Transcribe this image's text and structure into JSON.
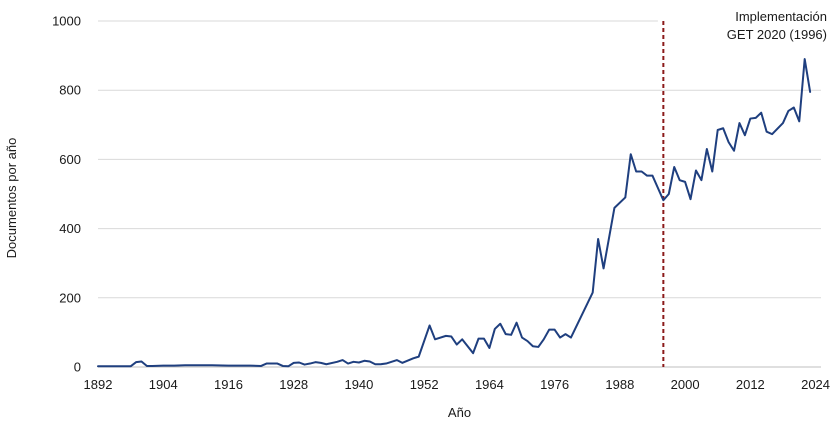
{
  "chart_data": {
    "type": "line",
    "xlabel": "Año",
    "ylabel": "Documentos por año",
    "xlim": [
      1892,
      2025
    ],
    "ylim": [
      0,
      1000
    ],
    "x_ticks": [
      1892,
      1904,
      1916,
      1928,
      1940,
      1952,
      1964,
      1976,
      1988,
      2000,
      2012,
      2024
    ],
    "y_ticks": [
      0,
      200,
      400,
      600,
      800,
      1000
    ],
    "grid": "horizontal",
    "line_color": "#1f3f7f",
    "series": [
      {
        "values": [
          [
            1892,
            2
          ],
          [
            1895,
            2
          ],
          [
            1898,
            2
          ],
          [
            1899,
            14
          ],
          [
            1900,
            16
          ],
          [
            1901,
            3
          ],
          [
            1902,
            3
          ],
          [
            1904,
            4
          ],
          [
            1906,
            4
          ],
          [
            1908,
            5
          ],
          [
            1910,
            5
          ],
          [
            1913,
            5
          ],
          [
            1916,
            4
          ],
          [
            1920,
            4
          ],
          [
            1922,
            3
          ],
          [
            1923,
            10
          ],
          [
            1925,
            10
          ],
          [
            1926,
            3
          ],
          [
            1927,
            2
          ],
          [
            1928,
            12
          ],
          [
            1929,
            13
          ],
          [
            1930,
            7
          ],
          [
            1931,
            10
          ],
          [
            1932,
            14
          ],
          [
            1933,
            12
          ],
          [
            1934,
            8
          ],
          [
            1936,
            15
          ],
          [
            1937,
            20
          ],
          [
            1938,
            10
          ],
          [
            1939,
            15
          ],
          [
            1940,
            13
          ],
          [
            1941,
            18
          ],
          [
            1942,
            16
          ],
          [
            1943,
            8
          ],
          [
            1944,
            8
          ],
          [
            1945,
            10
          ],
          [
            1946,
            15
          ],
          [
            1947,
            20
          ],
          [
            1948,
            12
          ],
          [
            1950,
            25
          ],
          [
            1951,
            30
          ],
          [
            1953,
            120
          ],
          [
            1954,
            80
          ],
          [
            1956,
            90
          ],
          [
            1957,
            88
          ],
          [
            1958,
            65
          ],
          [
            1959,
            80
          ],
          [
            1961,
            40
          ],
          [
            1962,
            82
          ],
          [
            1963,
            82
          ],
          [
            1964,
            55
          ],
          [
            1965,
            110
          ],
          [
            1966,
            125
          ],
          [
            1967,
            95
          ],
          [
            1968,
            93
          ],
          [
            1969,
            128
          ],
          [
            1970,
            85
          ],
          [
            1971,
            75
          ],
          [
            1972,
            60
          ],
          [
            1973,
            58
          ],
          [
            1974,
            80
          ],
          [
            1975,
            108
          ],
          [
            1976,
            108
          ],
          [
            1977,
            85
          ],
          [
            1978,
            95
          ],
          [
            1979,
            85
          ],
          [
            1983,
            215
          ],
          [
            1984,
            370
          ],
          [
            1985,
            285
          ],
          [
            1987,
            460
          ],
          [
            1989,
            490
          ],
          [
            1990,
            615
          ],
          [
            1991,
            565
          ],
          [
            1992,
            565
          ],
          [
            1993,
            553
          ],
          [
            1994,
            553
          ],
          [
            1996,
            482
          ],
          [
            1997,
            500
          ],
          [
            1998,
            578
          ],
          [
            1999,
            540
          ],
          [
            2000,
            535
          ],
          [
            2001,
            485
          ],
          [
            2002,
            568
          ],
          [
            2003,
            540
          ],
          [
            2004,
            630
          ],
          [
            2005,
            565
          ],
          [
            2006,
            685
          ],
          [
            2007,
            690
          ],
          [
            2008,
            650
          ],
          [
            2009,
            625
          ],
          [
            2010,
            705
          ],
          [
            2011,
            670
          ],
          [
            2012,
            718
          ],
          [
            2013,
            720
          ],
          [
            2014,
            735
          ],
          [
            2015,
            680
          ],
          [
            2016,
            673
          ],
          [
            2018,
            705
          ],
          [
            2019,
            740
          ],
          [
            2020,
            750
          ],
          [
            2021,
            710
          ],
          [
            2022,
            890
          ],
          [
            2023,
            795
          ]
        ]
      }
    ],
    "annotations": [
      {
        "type": "vertical-line",
        "x": 1996,
        "style": "dashed",
        "color": "#8b1a1a",
        "label_lines": [
          "Implementación",
          "GET 2020 (1996)"
        ]
      }
    ]
  }
}
